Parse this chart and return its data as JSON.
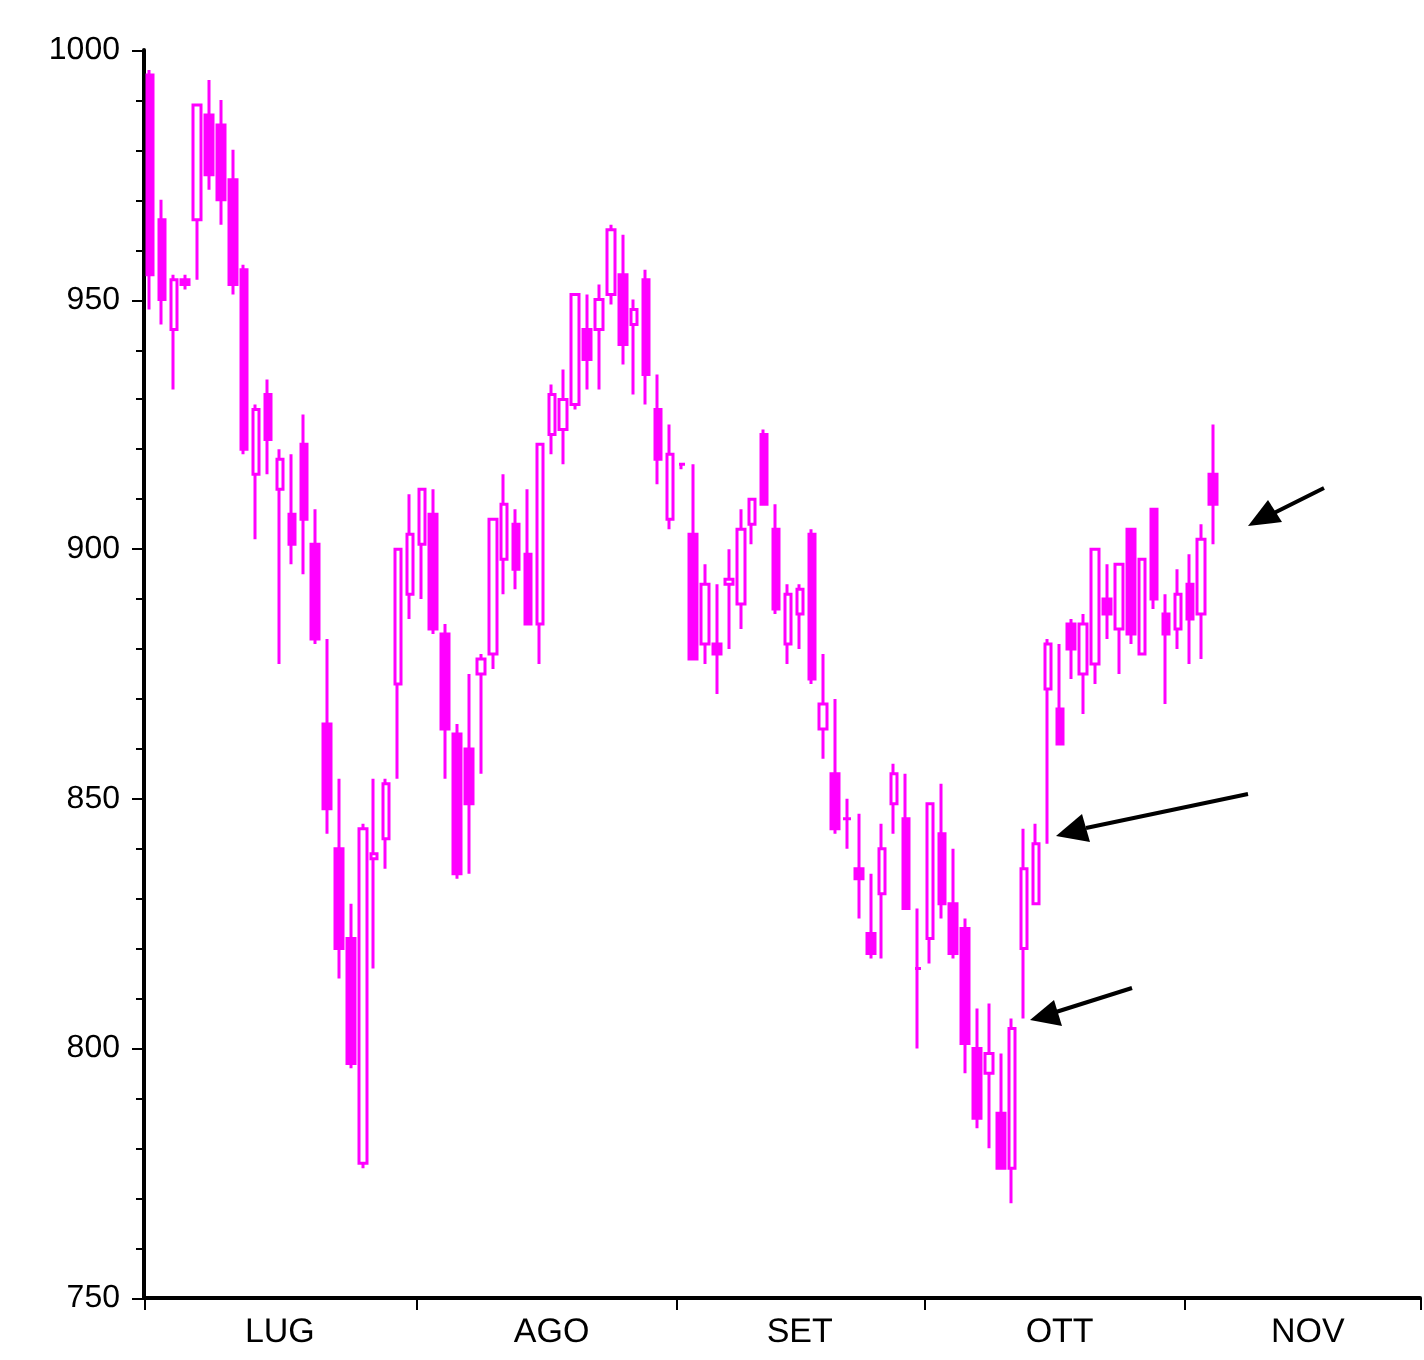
{
  "chart_data": {
    "type": "candlestick",
    "categories": [
      null,
      null,
      null,
      null,
      null,
      null,
      null,
      null,
      null,
      null,
      null,
      "LUG",
      null,
      null,
      null,
      null,
      null,
      null,
      null,
      null,
      null,
      null,
      null,
      null,
      null,
      null,
      null,
      null,
      null,
      null,
      null,
      null,
      null,
      null,
      "AGO",
      null,
      null,
      null,
      null,
      null,
      null,
      null,
      null,
      null,
      null,
      null,
      null,
      null,
      null,
      null,
      null,
      null,
      null,
      null,
      null,
      "SET",
      null,
      null,
      null,
      null,
      null,
      null,
      null,
      null,
      null,
      null,
      null,
      null,
      null,
      null,
      null,
      null,
      null,
      null,
      null,
      null,
      null,
      "OTT",
      null,
      null,
      null,
      null,
      null,
      null,
      null,
      null,
      null,
      null,
      null,
      null,
      null,
      null,
      null,
      null,
      null,
      null,
      null,
      null,
      "NOV",
      null,
      null,
      null,
      null,
      null,
      null,
      null,
      null,
      null
    ],
    "ohlc": [
      [
        995,
        996,
        948,
        955
      ],
      [
        966,
        970,
        945,
        950
      ],
      [
        944,
        955,
        932,
        954
      ],
      [
        954,
        955,
        952,
        953
      ],
      [
        966,
        989,
        954,
        989
      ],
      [
        987,
        994,
        972,
        975
      ],
      [
        985,
        990,
        965,
        970
      ],
      [
        974,
        980,
        951,
        953
      ],
      [
        956,
        957,
        919,
        920
      ],
      [
        915,
        929,
        902,
        928
      ],
      [
        931,
        934,
        915,
        922
      ],
      [
        912,
        920,
        877,
        918
      ],
      [
        907,
        919,
        897,
        901
      ],
      [
        921,
        927,
        895,
        906
      ],
      [
        901,
        908,
        881,
        882
      ],
      [
        865,
        882,
        843,
        848
      ],
      [
        840,
        854,
        814,
        820
      ],
      [
        822,
        829,
        796,
        797
      ],
      [
        777,
        845,
        776,
        844
      ],
      [
        838,
        854,
        816,
        839
      ],
      [
        842,
        854,
        836,
        853
      ],
      [
        873,
        900,
        854,
        900
      ],
      [
        891,
        911,
        886,
        903
      ],
      [
        901,
        912,
        890,
        912
      ],
      [
        907,
        912,
        883,
        884
      ],
      [
        883,
        885,
        854,
        864
      ],
      [
        863,
        865,
        834,
        835
      ],
      [
        860,
        875,
        835,
        849
      ],
      [
        875,
        879,
        855,
        878
      ],
      [
        879,
        906,
        876,
        906
      ],
      [
        898,
        915,
        891,
        909
      ],
      [
        905,
        908,
        892,
        896
      ],
      [
        899,
        912,
        885,
        885
      ],
      [
        885,
        921,
        877,
        921
      ],
      [
        923,
        933,
        919,
        931
      ],
      [
        924,
        936,
        917,
        930
      ],
      [
        929,
        951,
        928,
        951
      ],
      [
        944,
        951,
        932,
        938
      ],
      [
        944,
        953,
        932,
        950
      ],
      [
        951,
        965,
        949,
        964
      ],
      [
        955,
        963,
        937,
        941
      ],
      [
        945,
        950,
        931,
        948
      ],
      [
        954,
        956,
        929,
        935
      ],
      [
        928,
        935,
        913,
        918
      ],
      [
        906,
        925,
        904,
        919
      ],
      [
        917,
        917,
        916,
        917
      ],
      [
        903,
        917,
        878,
        878
      ],
      [
        881,
        897,
        877,
        893
      ],
      [
        881,
        893,
        871,
        879
      ],
      [
        893,
        900,
        880,
        894
      ],
      [
        889,
        908,
        884,
        904
      ],
      [
        905,
        910,
        901,
        910
      ],
      [
        923,
        924,
        909,
        909
      ],
      [
        904,
        909,
        887,
        888
      ],
      [
        881,
        893,
        877,
        891
      ],
      [
        887,
        893,
        880,
        892
      ],
      [
        903,
        904,
        873,
        874
      ],
      [
        864,
        879,
        858,
        869
      ],
      [
        855,
        870,
        843,
        844
      ],
      [
        846,
        850,
        840,
        846
      ],
      [
        836,
        847,
        826,
        834
      ],
      [
        823,
        835,
        818,
        819
      ],
      [
        831,
        845,
        818,
        840
      ],
      [
        849,
        857,
        843,
        855
      ],
      [
        846,
        855,
        828,
        828
      ],
      [
        816,
        828,
        800,
        816
      ],
      [
        822,
        849,
        817,
        849
      ],
      [
        843,
        853,
        826,
        829
      ],
      [
        829,
        840,
        818,
        819
      ],
      [
        824,
        826,
        795,
        801
      ],
      [
        800,
        808,
        784,
        786
      ],
      [
        795,
        809,
        780,
        799
      ],
      [
        787,
        799,
        776,
        776
      ],
      [
        776,
        806,
        769,
        804
      ],
      [
        820,
        844,
        806,
        836
      ],
      [
        829,
        845,
        829,
        841
      ],
      [
        872,
        882,
        841,
        881
      ],
      [
        868,
        881,
        861,
        861
      ],
      [
        885,
        886,
        874,
        880
      ],
      [
        875,
        887,
        867,
        885
      ],
      [
        877,
        900,
        873,
        900
      ],
      [
        890,
        897,
        882,
        887
      ],
      [
        884,
        897,
        875,
        897
      ],
      [
        904,
        904,
        881,
        883
      ],
      [
        879,
        898,
        879,
        898
      ],
      [
        908,
        908,
        888,
        890
      ],
      [
        887,
        891,
        869,
        883
      ],
      [
        884,
        896,
        880,
        891
      ],
      [
        893,
        899,
        877,
        886
      ],
      [
        887,
        905,
        878,
        902
      ],
      [
        915,
        925,
        901,
        909
      ],
      null,
      null,
      null,
      null,
      null,
      null,
      null,
      null,
      null,
      null,
      null,
      null,
      null,
      null,
      null,
      null,
      null
    ],
    "color": "#ff00ff",
    "ylim": [
      750,
      1000
    ],
    "yticks": [
      750,
      800,
      850,
      900,
      950,
      1000
    ],
    "grid": false
  }
}
